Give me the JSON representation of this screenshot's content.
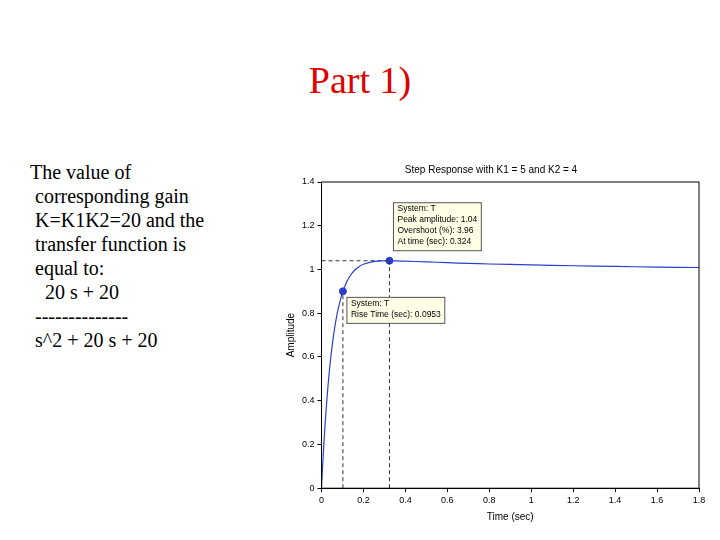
{
  "slide": {
    "title": "Part 1)",
    "text_lines": [
      "The value of",
      " corresponding gain",
      " K=K1K2=20 and the",
      " transfer function is",
      " equal to:",
      "   20 s + 20",
      " --------------",
      " s^2 + 20 s + 20"
    ]
  },
  "chart_data": {
    "type": "line",
    "title": "Step Response with K1 = 5 and K2 = 4",
    "x_label": "Time (sec)",
    "y_label": "Amplitude",
    "x": [
      0,
      0.01,
      0.02,
      0.03,
      0.04,
      0.05,
      0.06,
      0.07,
      0.08,
      0.1,
      0.12,
      0.14,
      0.16,
      0.18,
      0.2,
      0.24,
      0.28,
      0.324,
      0.36,
      0.4,
      0.5,
      0.6,
      0.7,
      0.8,
      1.0,
      1.2,
      1.4,
      1.6,
      1.8
    ],
    "values": [
      0,
      0.182,
      0.333,
      0.457,
      0.56,
      0.645,
      0.716,
      0.774,
      0.822,
      0.894,
      0.943,
      0.976,
      0.999,
      1.014,
      1.024,
      1.035,
      1.039,
      1.04,
      1.039,
      1.038,
      1.035,
      1.031,
      1.028,
      1.025,
      1.021,
      1.017,
      1.014,
      1.011,
      1.009
    ],
    "color": "#2a3fd0",
    "xlim": [
      0,
      1.8
    ],
    "ylim": [
      0,
      1.4
    ],
    "xticks": [
      0,
      0.2,
      0.4,
      0.6,
      0.8,
      1,
      1.2,
      1.4,
      1.6,
      1.8
    ],
    "yticks": [
      0,
      0.2,
      0.4,
      0.6,
      0.8,
      1,
      1.2,
      1.4
    ],
    "grid": false,
    "annotations": [
      {
        "x": 0.324,
        "y": 1.04,
        "lines": [
          "System: T",
          "Peak amplitude: 1.04",
          "Overshoot (%): 3.96",
          "At time (sec): 0.324"
        ]
      },
      {
        "x": 0.102,
        "y": 0.9,
        "lines": [
          "System: T",
          "Rise Time (sec): 0.0953"
        ]
      }
    ]
  }
}
